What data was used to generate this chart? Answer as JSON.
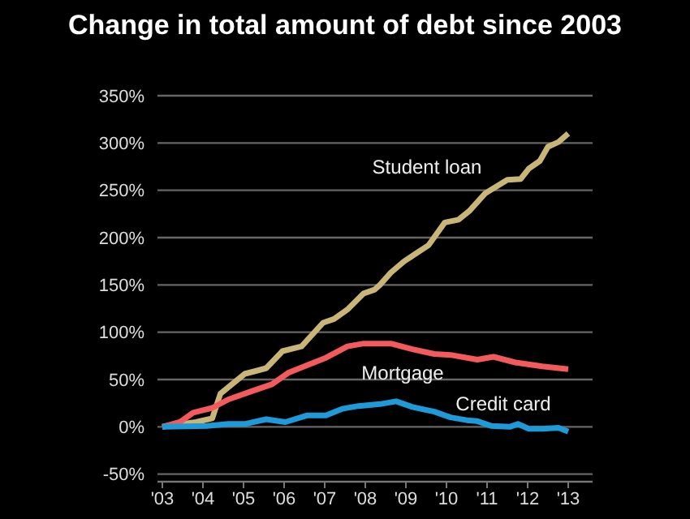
{
  "chart_data": {
    "type": "line",
    "title": "Change in total amount of debt since 2003",
    "xlim": [
      2002.88,
      2013.6
    ],
    "xticks": [
      {
        "value": 2003,
        "label": "'03"
      },
      {
        "value": 2004,
        "label": "'04"
      },
      {
        "value": 2005,
        "label": "'05"
      },
      {
        "value": 2006,
        "label": "'06"
      },
      {
        "value": 2007,
        "label": "'07"
      },
      {
        "value": 2008,
        "label": "'08"
      },
      {
        "value": 2009,
        "label": "'09"
      },
      {
        "value": 2010,
        "label": "'10"
      },
      {
        "value": 2011,
        "label": "'11"
      },
      {
        "value": 2012,
        "label": "'12"
      },
      {
        "value": 2013,
        "label": "'13"
      }
    ],
    "ylim": [
      -58,
      350
    ],
    "yticks": [
      {
        "value": -50,
        "label": "-50%"
      },
      {
        "value": 0,
        "label": "0%"
      },
      {
        "value": 50,
        "label": "50%"
      },
      {
        "value": 100,
        "label": "100%"
      },
      {
        "value": 150,
        "label": "150%"
      },
      {
        "value": 200,
        "label": "200%"
      },
      {
        "value": 250,
        "label": "250%"
      },
      {
        "value": 300,
        "label": "300%"
      },
      {
        "value": 350,
        "label": "350%"
      }
    ],
    "grid": "y",
    "marker": "none",
    "line_style": "solid",
    "series": [
      {
        "name": "Student loan",
        "color": "#c8b577",
        "x": [
          2003,
          2003.5,
          2003.83,
          2004.23,
          2004.43,
          2005.03,
          2005.3,
          2005.56,
          2005.96,
          2006.43,
          2006.96,
          2007.23,
          2007.56,
          2007.96,
          2008.23,
          2008.36,
          2008.63,
          2008.96,
          2009.56,
          2009.96,
          2010.3,
          2010.56,
          2010.96,
          2011.5,
          2011.83,
          2012.03,
          2012.3,
          2012.5,
          2012.76,
          2013
        ],
        "values": [
          0,
          3,
          5,
          9,
          35,
          56,
          59,
          62,
          80,
          85,
          110,
          114,
          124,
          141,
          145,
          150,
          163,
          175,
          192,
          216,
          219,
          228,
          247,
          261,
          262,
          273,
          281,
          296,
          301,
          310
        ]
      },
      {
        "name": "Mortgage",
        "color": "#f25a5c",
        "x": [
          2003,
          2003.43,
          2003.76,
          2004.23,
          2004.63,
          2005.16,
          2005.7,
          2006.1,
          2006.56,
          2007.03,
          2007.56,
          2007.96,
          2008.63,
          2009.16,
          2009.7,
          2010.1,
          2010.76,
          2011.16,
          2011.7,
          2012.36,
          2013
        ],
        "values": [
          0,
          5,
          15,
          20,
          29,
          37,
          45,
          57,
          65,
          73,
          85,
          88,
          88,
          82,
          77,
          76,
          71,
          74,
          68,
          64,
          61
        ]
      },
      {
        "name": "Credit card",
        "color": "#1f9ad8",
        "x": [
          2003,
          2004.1,
          2004.63,
          2005.03,
          2005.56,
          2006.03,
          2006.56,
          2007.03,
          2007.43,
          2007.83,
          2008.36,
          2008.76,
          2009.16,
          2009.7,
          2010.1,
          2010.5,
          2010.76,
          2011.1,
          2011.56,
          2011.76,
          2012.03,
          2012.36,
          2012.76,
          2013
        ],
        "values": [
          0,
          1,
          3,
          3,
          8,
          5,
          12,
          12,
          19,
          22,
          24,
          27,
          21,
          16,
          10,
          7,
          6,
          1,
          0,
          3,
          -2,
          -2,
          -1,
          -5
        ]
      }
    ]
  }
}
